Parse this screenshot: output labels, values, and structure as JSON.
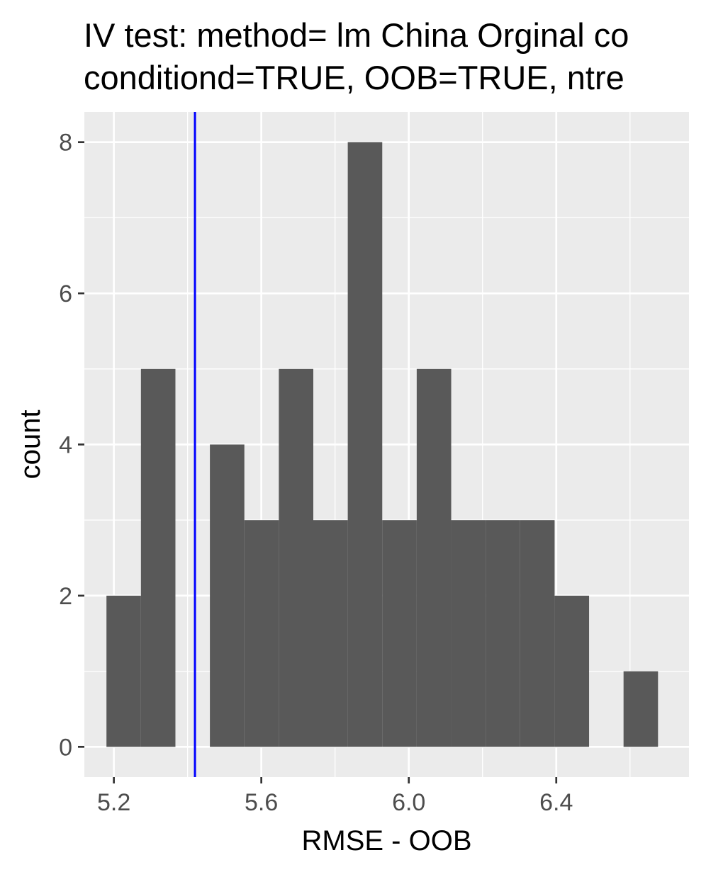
{
  "chart_data": {
    "type": "bar",
    "title_lines": [
      "IV test: method= lm China Orginal co",
      "conditiond=TRUE, OOB=TRUE, ntre"
    ],
    "xlabel": "RMSE - OOB",
    "ylabel": "count",
    "bin_width": 0.0935,
    "bins": [
      {
        "start": 5.18,
        "count": 2
      },
      {
        "start": 5.2735,
        "count": 5
      },
      {
        "start": 5.367,
        "count": 0
      },
      {
        "start": 5.4605,
        "count": 4
      },
      {
        "start": 5.554,
        "count": 3
      },
      {
        "start": 5.6475,
        "count": 5
      },
      {
        "start": 5.741,
        "count": 3
      },
      {
        "start": 5.8345,
        "count": 8
      },
      {
        "start": 5.928,
        "count": 3
      },
      {
        "start": 6.0215,
        "count": 5
      },
      {
        "start": 6.115,
        "count": 3
      },
      {
        "start": 6.2085,
        "count": 3
      },
      {
        "start": 6.302,
        "count": 3
      },
      {
        "start": 6.3955,
        "count": 2
      },
      {
        "start": 6.489,
        "count": 0
      },
      {
        "start": 6.5825,
        "count": 1
      }
    ],
    "vline": {
      "x": 5.42,
      "color": "#0000ff"
    },
    "xlim": [
      5.12,
      6.76
    ],
    "ylim": [
      -0.4,
      8.4
    ],
    "x_ticks": [
      "5.2",
      "5.6",
      "6.0",
      "6.4"
    ],
    "y_ticks": [
      "0",
      "2",
      "4",
      "6",
      "8"
    ],
    "grid": true,
    "colors": {
      "panel": "#ebebeb",
      "grid": "#ffffff",
      "bar": "#595959",
      "vline": "#0000ff"
    }
  }
}
